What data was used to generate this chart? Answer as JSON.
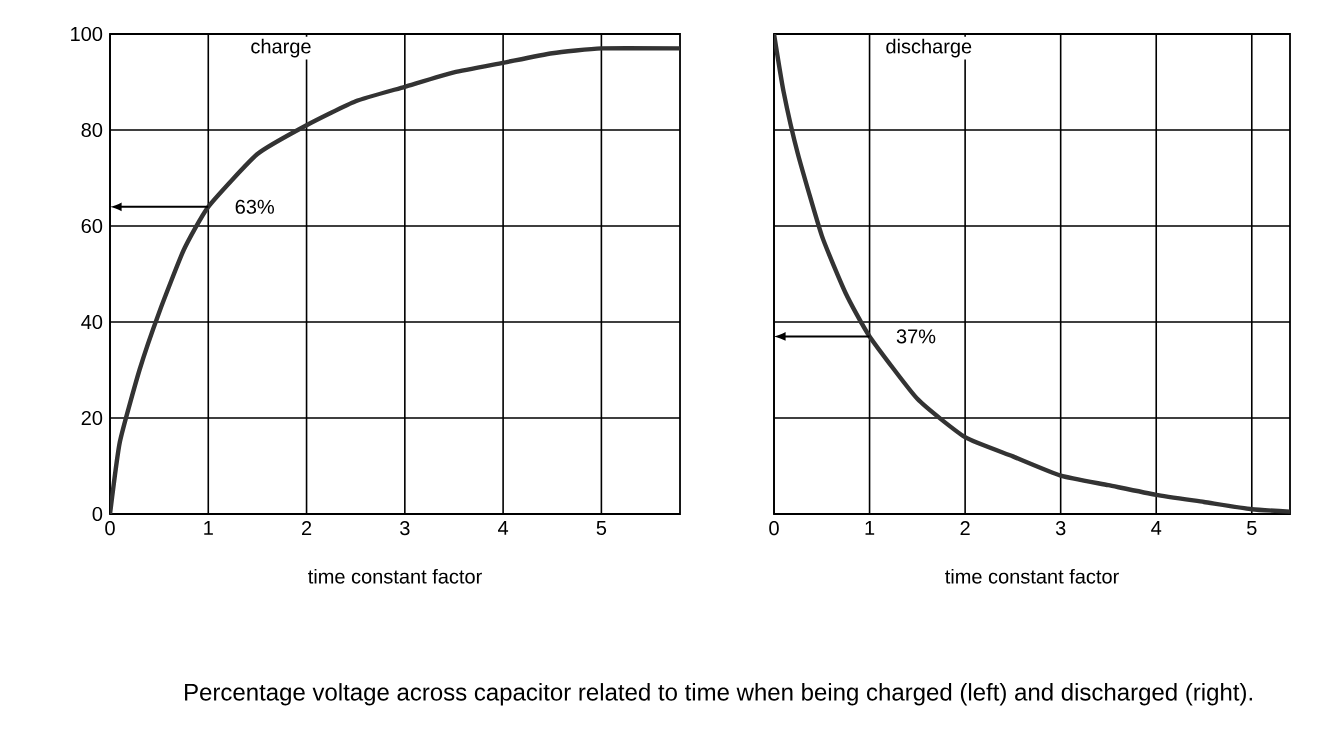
{
  "chart_data": [
    {
      "type": "line",
      "title": "charge",
      "xlabel": "time  constant  factor",
      "xlim": [
        0,
        5.8
      ],
      "ylim": [
        0,
        100
      ],
      "xticks": [
        0,
        1,
        2,
        3,
        4,
        5
      ],
      "yticks": [
        0,
        20,
        40,
        60,
        80,
        100
      ],
      "grid": true,
      "tick_labels": true,
      "series": [
        {
          "color": "#333333",
          "x": [
            0,
            0.1,
            0.3,
            0.5,
            0.75,
            1,
            1.5,
            2,
            2.5,
            3,
            3.5,
            4,
            4.5,
            5,
            5.8
          ],
          "values": [
            0,
            15,
            30,
            42,
            55,
            64,
            75,
            81,
            86,
            89,
            92,
            94,
            96,
            97,
            97
          ]
        }
      ],
      "annotations": [
        {
          "text": "63%",
          "x": 1,
          "y": 64
        },
        "Percentage voltage across capacitor related to time when being charged (left) and discharged (right)."
      ]
    },
    {
      "type": "line",
      "title": "discharge",
      "xlabel": "time  constant factor",
      "xlim": [
        0,
        5.4
      ],
      "ylim": [
        0,
        100
      ],
      "xticks": [
        0,
        1,
        2,
        3,
        4,
        5
      ],
      "yticks": [
        {
          "value": 0,
          "label": null
        },
        {
          "value": 20,
          "label": null
        },
        {
          "value": 40,
          "label": null
        },
        {
          "value": 60,
          "label": null
        },
        {
          "value": 80,
          "label": null
        },
        {
          "value": 100,
          "label": null
        }
      ],
      "grid": true,
      "tick_labels": "x",
      "series": [
        {
          "color": "#333333",
          "x": [
            0,
            0.1,
            0.25,
            0.5,
            0.75,
            1,
            1.5,
            2,
            2.5,
            3,
            3.5,
            4,
            4.5,
            5,
            5.4
          ],
          "values": [
            100,
            88,
            75,
            58,
            46,
            37,
            24,
            16,
            12,
            8,
            6,
            4,
            2.5,
            1,
            0.5
          ]
        }
      ],
      "annotations": [
        {
          "text": "37%",
          "x": 1,
          "y": 37
        }
      ]
    }
  ]
}
